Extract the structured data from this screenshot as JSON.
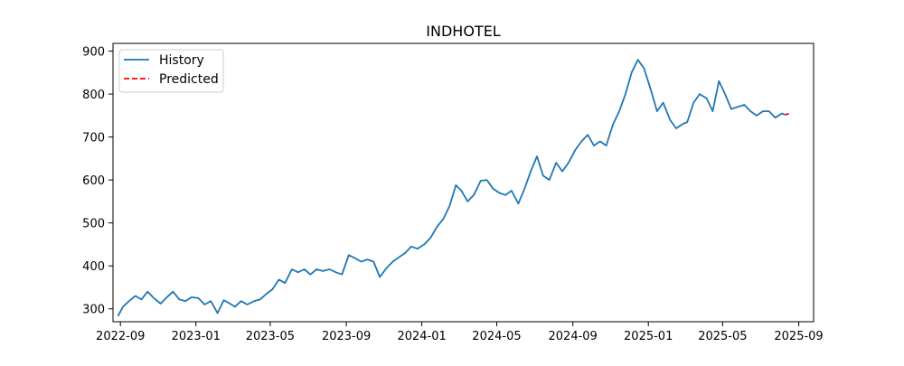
{
  "chart_data": {
    "type": "line",
    "title": "INDHOTEL",
    "xlabel": "",
    "ylabel": "",
    "grid": false,
    "legend_position": "top-left",
    "x_domain": [
      "2022-08-20",
      "2025-09-25"
    ],
    "ylim": [
      270,
      918
    ],
    "x_ticks": [
      "2022-09-01",
      "2023-01-01",
      "2023-05-01",
      "2023-09-01",
      "2024-01-01",
      "2024-05-01",
      "2024-09-01",
      "2025-01-01",
      "2025-05-01",
      "2025-09-01"
    ],
    "x_tick_labels": [
      "2022-09",
      "2023-01",
      "2023-05",
      "2023-09",
      "2024-01",
      "2024-05",
      "2024-09",
      "2025-01",
      "2025-05",
      "2025-09"
    ],
    "y_ticks": [
      300,
      400,
      500,
      600,
      700,
      800,
      900
    ],
    "y_tick_labels": [
      "300",
      "400",
      "500",
      "600",
      "700",
      "800",
      "900"
    ],
    "series": [
      {
        "name": "History",
        "color": "#1f77b4",
        "style": "solid",
        "points": [
          [
            "2022-08-28",
            283
          ],
          [
            "2022-09-05",
            305
          ],
          [
            "2022-09-15",
            318
          ],
          [
            "2022-09-25",
            330
          ],
          [
            "2022-10-05",
            322
          ],
          [
            "2022-10-15",
            340
          ],
          [
            "2022-10-25",
            325
          ],
          [
            "2022-11-05",
            312
          ],
          [
            "2022-11-15",
            327
          ],
          [
            "2022-11-25",
            340
          ],
          [
            "2022-12-05",
            322
          ],
          [
            "2022-12-15",
            318
          ],
          [
            "2022-12-25",
            327
          ],
          [
            "2023-01-05",
            325
          ],
          [
            "2023-01-15",
            310
          ],
          [
            "2023-01-25",
            318
          ],
          [
            "2023-02-05",
            290
          ],
          [
            "2023-02-15",
            320
          ],
          [
            "2023-02-25",
            312
          ],
          [
            "2023-03-05",
            305
          ],
          [
            "2023-03-15",
            318
          ],
          [
            "2023-03-25",
            310
          ],
          [
            "2023-04-05",
            318
          ],
          [
            "2023-04-15",
            322
          ],
          [
            "2023-04-25",
            335
          ],
          [
            "2023-05-05",
            346
          ],
          [
            "2023-05-15",
            368
          ],
          [
            "2023-05-25",
            360
          ],
          [
            "2023-06-05",
            392
          ],
          [
            "2023-06-15",
            385
          ],
          [
            "2023-06-25",
            392
          ],
          [
            "2023-07-05",
            380
          ],
          [
            "2023-07-15",
            392
          ],
          [
            "2023-07-25",
            388
          ],
          [
            "2023-08-05",
            392
          ],
          [
            "2023-08-15",
            385
          ],
          [
            "2023-08-25",
            380
          ],
          [
            "2023-09-05",
            425
          ],
          [
            "2023-09-15",
            418
          ],
          [
            "2023-09-25",
            410
          ],
          [
            "2023-10-05",
            415
          ],
          [
            "2023-10-15",
            410
          ],
          [
            "2023-10-25",
            374
          ],
          [
            "2023-11-05",
            395
          ],
          [
            "2023-11-15",
            410
          ],
          [
            "2023-11-25",
            420
          ],
          [
            "2023-12-05",
            430
          ],
          [
            "2023-12-15",
            445
          ],
          [
            "2023-12-25",
            440
          ],
          [
            "2024-01-05",
            450
          ],
          [
            "2024-01-15",
            465
          ],
          [
            "2024-01-25",
            490
          ],
          [
            "2024-02-05",
            510
          ],
          [
            "2024-02-15",
            540
          ],
          [
            "2024-02-25",
            588
          ],
          [
            "2024-03-05",
            575
          ],
          [
            "2024-03-15",
            550
          ],
          [
            "2024-03-25",
            565
          ],
          [
            "2024-04-05",
            598
          ],
          [
            "2024-04-15",
            600
          ],
          [
            "2024-04-25",
            580
          ],
          [
            "2024-05-05",
            570
          ],
          [
            "2024-05-15",
            565
          ],
          [
            "2024-05-25",
            575
          ],
          [
            "2024-06-05",
            545
          ],
          [
            "2024-06-15",
            580
          ],
          [
            "2024-06-25",
            620
          ],
          [
            "2024-07-05",
            655
          ],
          [
            "2024-07-15",
            610
          ],
          [
            "2024-07-25",
            600
          ],
          [
            "2024-08-05",
            640
          ],
          [
            "2024-08-15",
            620
          ],
          [
            "2024-08-25",
            640
          ],
          [
            "2024-09-05",
            670
          ],
          [
            "2024-09-15",
            690
          ],
          [
            "2024-09-25",
            705
          ],
          [
            "2024-10-05",
            680
          ],
          [
            "2024-10-15",
            690
          ],
          [
            "2024-10-25",
            680
          ],
          [
            "2024-11-05",
            730
          ],
          [
            "2024-11-15",
            760
          ],
          [
            "2024-11-25",
            800
          ],
          [
            "2024-12-05",
            850
          ],
          [
            "2024-12-15",
            880
          ],
          [
            "2024-12-25",
            860
          ],
          [
            "2025-01-05",
            810
          ],
          [
            "2025-01-15",
            760
          ],
          [
            "2025-01-25",
            780
          ],
          [
            "2025-02-05",
            740
          ],
          [
            "2025-02-15",
            720
          ],
          [
            "2025-02-25",
            730
          ],
          [
            "2025-03-05",
            735
          ],
          [
            "2025-03-15",
            780
          ],
          [
            "2025-03-25",
            800
          ],
          [
            "2025-04-05",
            790
          ],
          [
            "2025-04-15",
            760
          ],
          [
            "2025-04-25",
            830
          ],
          [
            "2025-05-05",
            800
          ],
          [
            "2025-05-15",
            765
          ],
          [
            "2025-05-25",
            770
          ],
          [
            "2025-06-05",
            775
          ],
          [
            "2025-06-15",
            760
          ],
          [
            "2025-06-25",
            750
          ],
          [
            "2025-07-05",
            760
          ],
          [
            "2025-07-15",
            760
          ],
          [
            "2025-07-25",
            745
          ],
          [
            "2025-08-05",
            755
          ],
          [
            "2025-08-10",
            752
          ]
        ]
      },
      {
        "name": "Predicted",
        "color": "#ff0000",
        "style": "dashed",
        "points": [
          [
            "2025-08-10",
            752
          ],
          [
            "2025-08-16",
            754
          ]
        ]
      }
    ]
  }
}
